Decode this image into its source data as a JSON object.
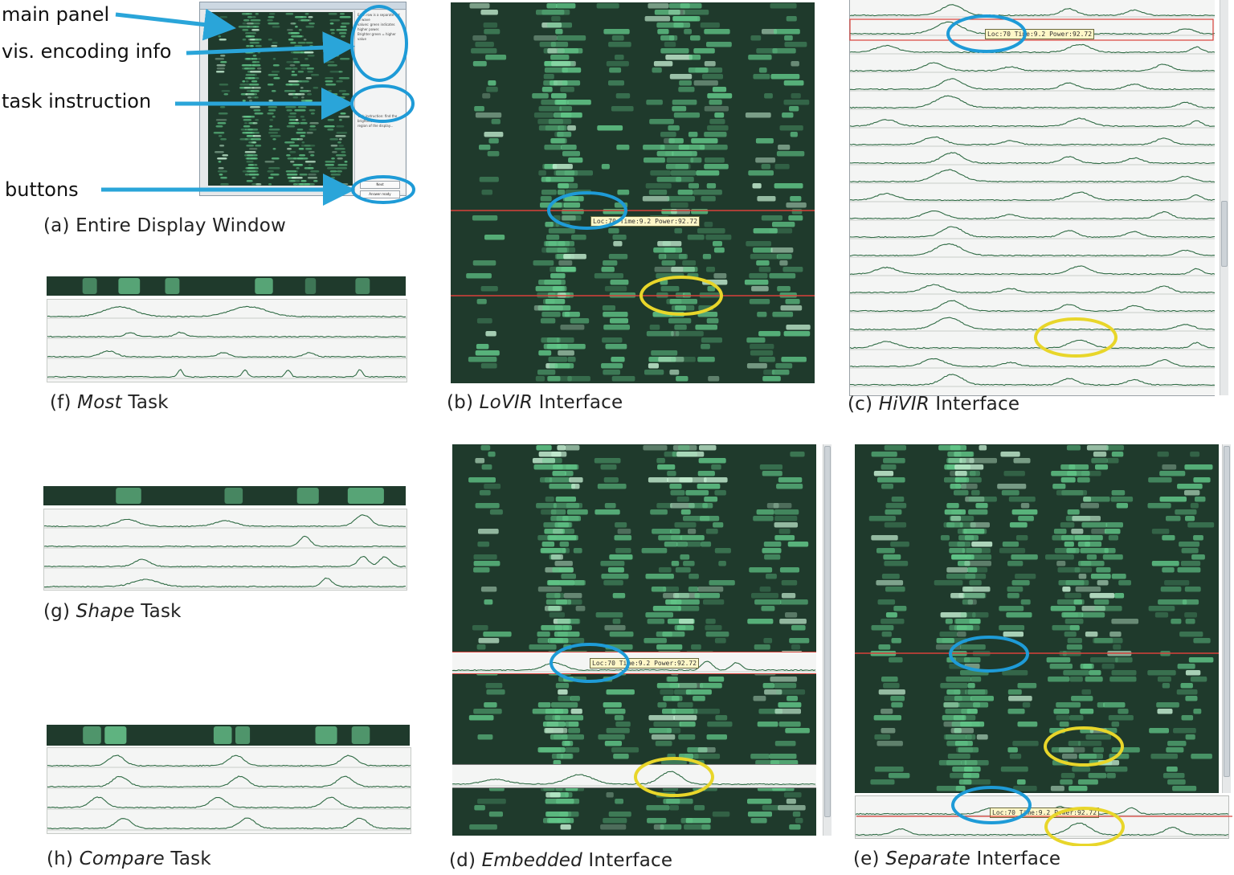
{
  "colors": {
    "heat_bg": "#1f3a2c",
    "heat_hi": "#7fe0a2",
    "plot_bg": "#f4f5f4",
    "blue_marker": "#1e9bd7",
    "yellow_marker": "#e8d62a",
    "red_line": "#d9413b",
    "arrow": "#2aa5d9"
  },
  "annotations": {
    "main_panel": "main panel",
    "vis_encoding": "vis. encoding info",
    "task_instruction": "task instruction",
    "buttons": "buttons"
  },
  "captions": {
    "a": {
      "prefix": "(a) ",
      "italic": "",
      "suffix": "Entire Display Window"
    },
    "b": {
      "prefix": "(b) ",
      "italic": "LoVIR",
      "suffix": " Interface"
    },
    "c": {
      "prefix": "(c) ",
      "italic": "HiVIR",
      "suffix": " Interface"
    },
    "d": {
      "prefix": "(d) ",
      "italic": "Embedded",
      "suffix": " Interface"
    },
    "e": {
      "prefix": "(e) ",
      "italic": "Separate",
      "suffix": " Interface"
    },
    "f": {
      "prefix": "(f) ",
      "italic": "Most",
      "suffix": " Task"
    },
    "g": {
      "prefix": "(g) ",
      "italic": "Shape",
      "suffix": " Task"
    },
    "h": {
      "prefix": "(h) ",
      "italic": "Compare",
      "suffix": " Task"
    }
  },
  "tooltips": {
    "b": "Loc:70 Time:9.2 Power:92.72",
    "c": "Loc:70 Time:9.2 Power:92.72",
    "d": "Loc:70 Time:9.2 Power:92.72",
    "e": "Loc:70 Time:9.2 Power:92.72"
  },
  "window_a": {
    "side_text": [
      "Each row is a separate set of wave",
      "values: green indicates higher power.",
      "Brighter green = higher value",
      "Task instruction: find the brightest",
      "region of the display..."
    ],
    "btn_next": "Next",
    "btn_answer": "Answer ready"
  }
}
